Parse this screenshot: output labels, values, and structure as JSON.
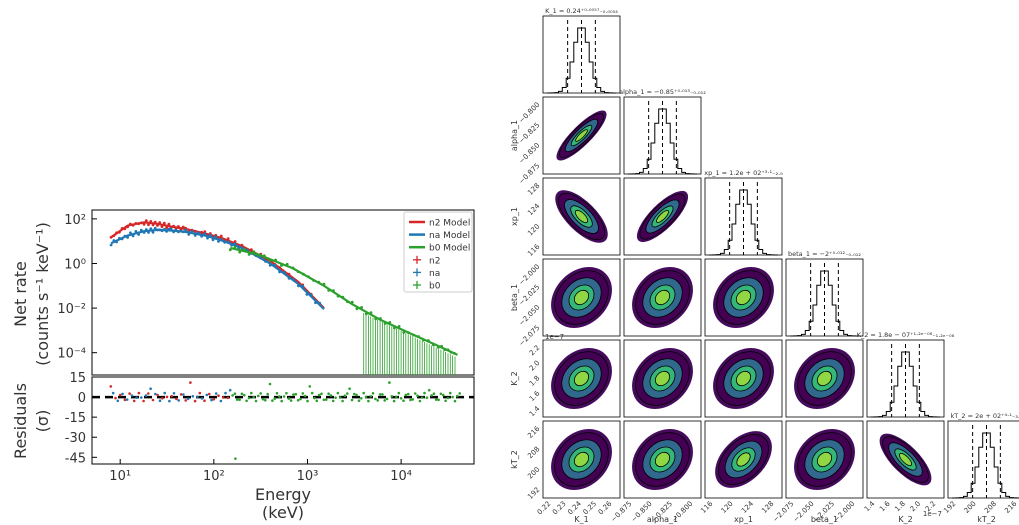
{
  "spectrum": {
    "ylabel_line1": "Net rate",
    "ylabel_line2": "(counts s⁻¹ keV⁻¹)",
    "resid_label_line1": "Residuals",
    "resid_label_line2": "(σ)",
    "xlabel_line1": "Energy",
    "xlabel_line2": "(keV)",
    "x_ticks": [
      "10¹",
      "10²",
      "10³",
      "10⁴"
    ],
    "y_ticks": [
      "10²",
      "10⁰",
      "10⁻²",
      "10⁻⁴"
    ],
    "resid_ticks": [
      "15",
      "0",
      "-15",
      "-30",
      "-45"
    ],
    "legend": [
      {
        "label": "n2 Model",
        "kind": "line",
        "color": "#d62728"
      },
      {
        "label": "na Model",
        "kind": "line",
        "color": "#1f77b4"
      },
      {
        "label": "b0 Model",
        "kind": "line",
        "color": "#2ca02c"
      },
      {
        "label": "n2",
        "kind": "cross",
        "color": "#d62728"
      },
      {
        "label": "na",
        "kind": "cross",
        "color": "#1f77b4"
      },
      {
        "label": "b0",
        "kind": "cross",
        "color": "#2ca02c"
      }
    ]
  },
  "corner": {
    "params": [
      "K_1",
      "alpha_1",
      "xp_1",
      "beta_1",
      "K_2",
      "kT_2"
    ],
    "titles": [
      "K_1 = 0.24⁺⁰·⁰⁰⁵⁷₋₀.₀₀₅₄",
      "alpha_1 = −0.85⁺⁰·⁰¹³₋₀.₀₁₂",
      "xp_1 = 1.2e + 02⁺³·¹₋₂.₉",
      "beta_1 = −2⁺⁰·⁰¹²₋₀.₀₁₂",
      "K_2 = 1.8e − 07⁺¹·²ᵉ⁻⁰⁸₋₁.₂ₑ₋₀₈",
      "kT_2 = 2e + 02⁺⁴·¹₋₃.₉"
    ],
    "x_ticks": [
      [
        "0.22",
        "0.23",
        "0.24",
        "0.25",
        "0.26"
      ],
      [
        "−0.875",
        "−0.850",
        "−0.825",
        "−0.800"
      ],
      [
        "116",
        "120",
        "124",
        "128"
      ],
      [
        "−2.075",
        "−2.050",
        "−2.025",
        "−2.000"
      ],
      [
        "1.4",
        "1.6",
        "1.8",
        "2.0",
        "2.2"
      ],
      [
        "192",
        "200",
        "208",
        "216"
      ]
    ],
    "y_ticks": [
      [],
      [
        "−0.800",
        "−0.825",
        "−0.850",
        "−0.875"
      ],
      [
        "128",
        "124",
        "120",
        "116"
      ],
      [
        "−2.000",
        "−2.025",
        "−2.050",
        "−2.075"
      ],
      [
        "2.2",
        "2.0",
        "1.8",
        "1.6",
        "1.4"
      ],
      [
        "216",
        "208",
        "200",
        "192"
      ]
    ],
    "offset_label": "1e−7",
    "offset_label_y": "1e−7"
  },
  "chart_data": [
    {
      "type": "scatter",
      "xlabel": "Energy (keV)",
      "ylabel": "Net rate (counts s⁻¹ keV⁻¹)",
      "xscale": "log",
      "yscale": "log",
      "xlim": [
        5,
        60000
      ],
      "ylim": [
        1e-05,
        250
      ],
      "series": [
        {
          "name": "n2 Model",
          "color": "#d62728",
          "x": [
            8,
            12,
            18,
            25,
            35,
            50,
            80,
            120,
            200,
            400,
            800,
            1500
          ],
          "y": [
            15,
            50,
            70,
            60,
            45,
            35,
            22,
            14,
            6,
            1.3,
            0.15,
            0.01
          ]
        },
        {
          "name": "na Model",
          "color": "#1f77b4",
          "x": [
            8,
            12,
            18,
            25,
            35,
            50,
            80,
            120,
            200,
            400,
            800,
            1500
          ],
          "y": [
            8,
            18,
            28,
            32,
            30,
            26,
            18,
            11,
            5,
            1.0,
            0.12,
            0.009
          ]
        },
        {
          "name": "b0 Model",
          "color": "#2ca02c",
          "x": [
            150,
            300,
            700,
            1500,
            3000,
            6000,
            12000,
            25000,
            40000
          ],
          "y": [
            5,
            2.5,
            0.6,
            0.1,
            0.015,
            0.003,
            0.0008,
            0.0002,
            8e-05
          ]
        }
      ]
    },
    {
      "type": "scatter",
      "ylabel": "Residuals (σ)",
      "ylim": [
        -50,
        15
      ]
    }
  ]
}
